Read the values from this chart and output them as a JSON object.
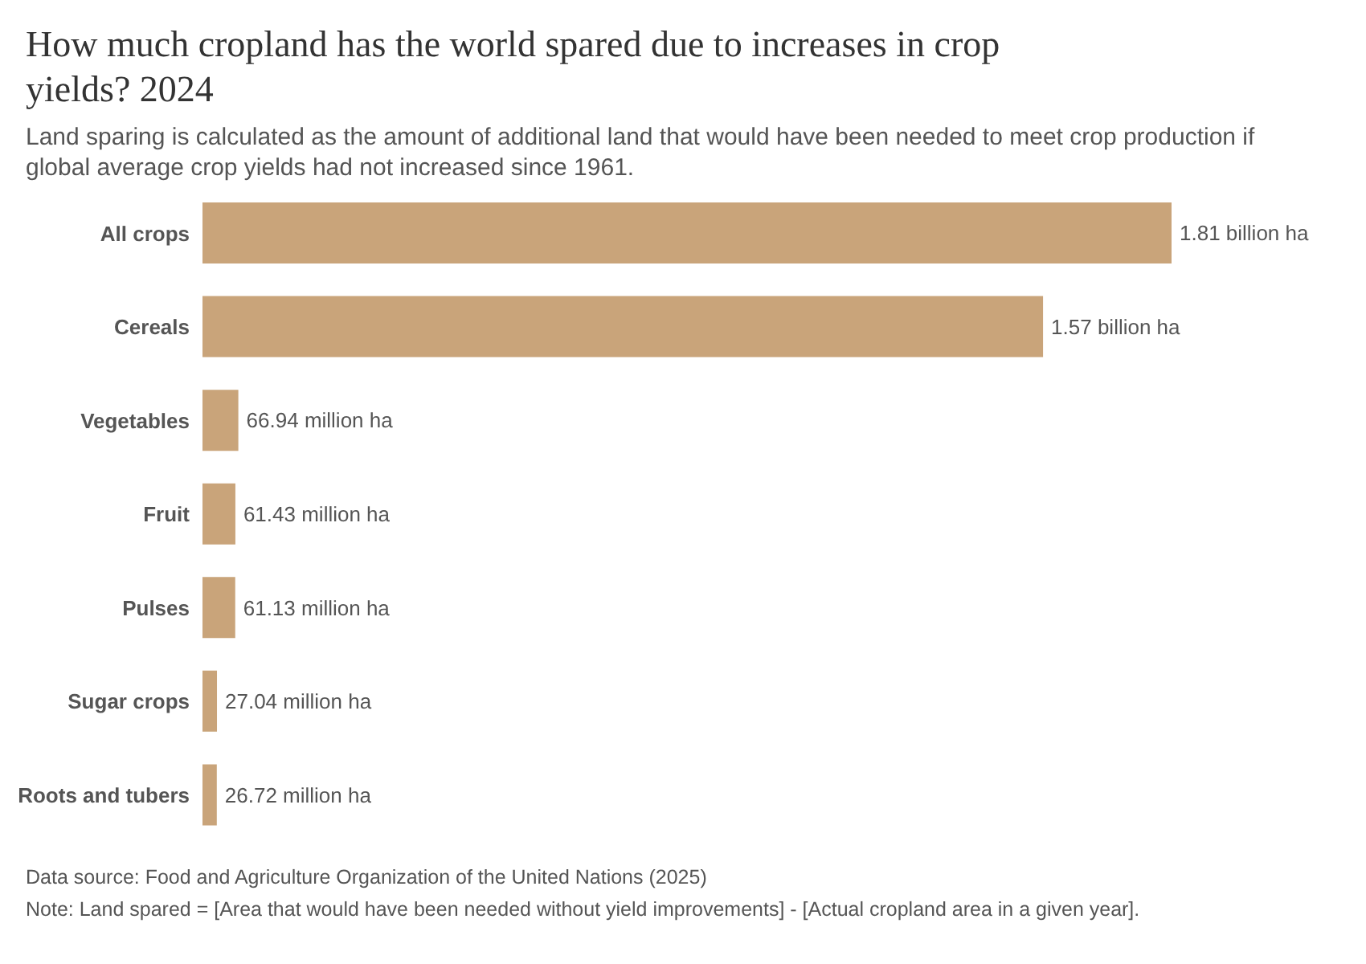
{
  "chart_data": {
    "type": "bar",
    "orientation": "horizontal",
    "title": "How much cropland has the world spared due to increases in crop yields? 2024",
    "subtitle": "Land sparing is calculated as the amount of additional land that would have been needed to meet crop production if global average crop yields had not increased since 1961.",
    "categories": [
      "All crops",
      "Cereals",
      "Vegetables",
      "Fruit",
      "Pulses",
      "Sugar crops",
      "Roots and tubers"
    ],
    "values": [
      1810000000,
      1570000000,
      66940000,
      61430000,
      61130000,
      27040000,
      26720000
    ],
    "value_labels": [
      "1.81 billion ha",
      "1.57 billion ha",
      "66.94 million ha",
      "61.43 million ha",
      "61.13 million ha",
      "27.04 million ha",
      "26.72 million ha"
    ],
    "color": "#c9a47a",
    "annotations": [
      "Data source: Food and Agriculture Organization of the United Nations (2025)",
      "Note: Land spared = [Area that would have been needed without yield improvements] - [Actual cropland area in a given year]."
    ]
  }
}
